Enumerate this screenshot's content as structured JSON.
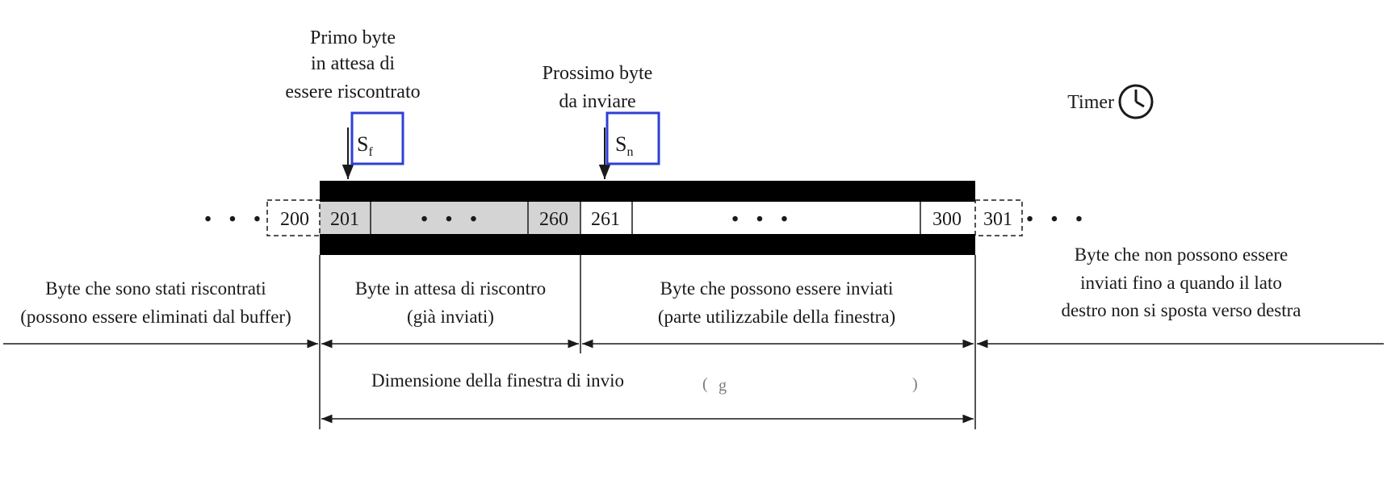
{
  "annotations": {
    "first_unacked": [
      "Primo byte",
      "in attesa di",
      "essere riscontrato"
    ],
    "next_to_send": [
      "Prossimo byte",
      "da inviare"
    ],
    "timer_label": "Timer",
    "sf": {
      "main": "S",
      "sub": "f"
    },
    "sn": {
      "main": "S",
      "sub": "n"
    }
  },
  "byte_cells": {
    "left_ellipsis": "• • •",
    "c200": "200",
    "c201": "201",
    "mid_ellipsis_1": "• • •",
    "c260": "260",
    "c261": "261",
    "mid_ellipsis_2": "• • •",
    "c300": "300",
    "c301": "301",
    "right_ellipsis": "• • •"
  },
  "regions": {
    "acked": [
      "Byte che sono stati riscontrati",
      "(possono essere eliminati dal buffer)"
    ],
    "outstanding": [
      "Byte in attesa di riscontro",
      "(già inviati)"
    ],
    "usable": [
      "Byte che possono essere inviati",
      "(parte utilizzabile della finestra)"
    ],
    "blocked": [
      "Byte che non possono essere",
      "inviati fino a quando il lato",
      "destro non si sposta verso destra"
    ]
  },
  "window_size_label": "Dimensione della finestra di invio",
  "colors": {
    "highlight_box": "#2f3fd6",
    "outstanding_fill": "#d4d4d4",
    "bar_fill": "#000000"
  }
}
